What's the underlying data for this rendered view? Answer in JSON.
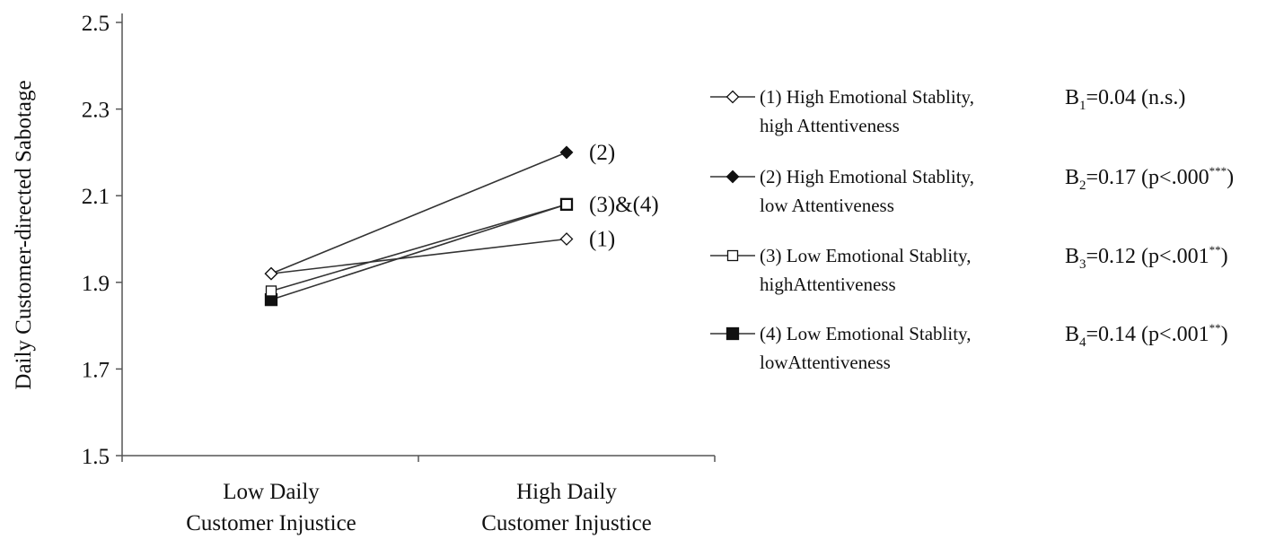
{
  "chart_data": {
    "type": "line",
    "ylabel": "Daily Customer-directed  Sabotage",
    "xlabel": "",
    "ylim": [
      1.5,
      2.5
    ],
    "yticks": [
      "1.5",
      "1.7",
      "1.9",
      "2.1",
      "2.3",
      "2.5"
    ],
    "ytick_values": [
      1.5,
      1.7,
      1.9,
      2.1,
      2.3,
      2.5
    ],
    "categories": [
      [
        "Low Daily",
        "Customer Injustice"
      ],
      [
        "High Daily",
        "Customer Injustice"
      ]
    ],
    "grid": false,
    "legend_position": "right",
    "series": [
      {
        "key": "s1",
        "name": "(1) High Emotional Stablity,",
        "name_line2": "high  Attentiveness",
        "marker": "diamond-open",
        "values": [
          1.92,
          2.0
        ],
        "end_label": "(1)",
        "coef": {
          "base": "B",
          "sub": "1",
          "rest": "=0.04 (n.s.)",
          "sup": ""
        }
      },
      {
        "key": "s2",
        "name": "(2) High Emotional Stablity,",
        "name_line2": "low  Attentiveness",
        "marker": "diamond-filled",
        "values": [
          1.92,
          2.2
        ],
        "end_label": "(2)",
        "coef": {
          "base": "B",
          "sub": "2",
          "rest": "=0.17 (p<.000",
          "sup": "***",
          "close": ")"
        }
      },
      {
        "key": "s3",
        "name": "(3) Low Emotional Stablity,",
        "name_line2": "highAttentiveness",
        "marker": "square-open",
        "values": [
          1.88,
          2.08
        ],
        "end_label": "",
        "coef": {
          "base": "B",
          "sub": "3",
          "rest": "=0.12 (p<.001",
          "sup": "**",
          "close": ")"
        }
      },
      {
        "key": "s4",
        "name": "(4) Low Emotional Stablity,",
        "name_line2": "lowAttentiveness",
        "marker": "square-filled",
        "values": [
          1.86,
          2.08
        ],
        "end_label": "(3)&(4)",
        "coef": {
          "base": "B",
          "sub": "4",
          "rest": "=0.14 (p<.001",
          "sup": "**",
          "close": ")"
        }
      }
    ],
    "colors": {
      "line": "#333333",
      "marker": "#111111",
      "axis": "#555555"
    }
  }
}
